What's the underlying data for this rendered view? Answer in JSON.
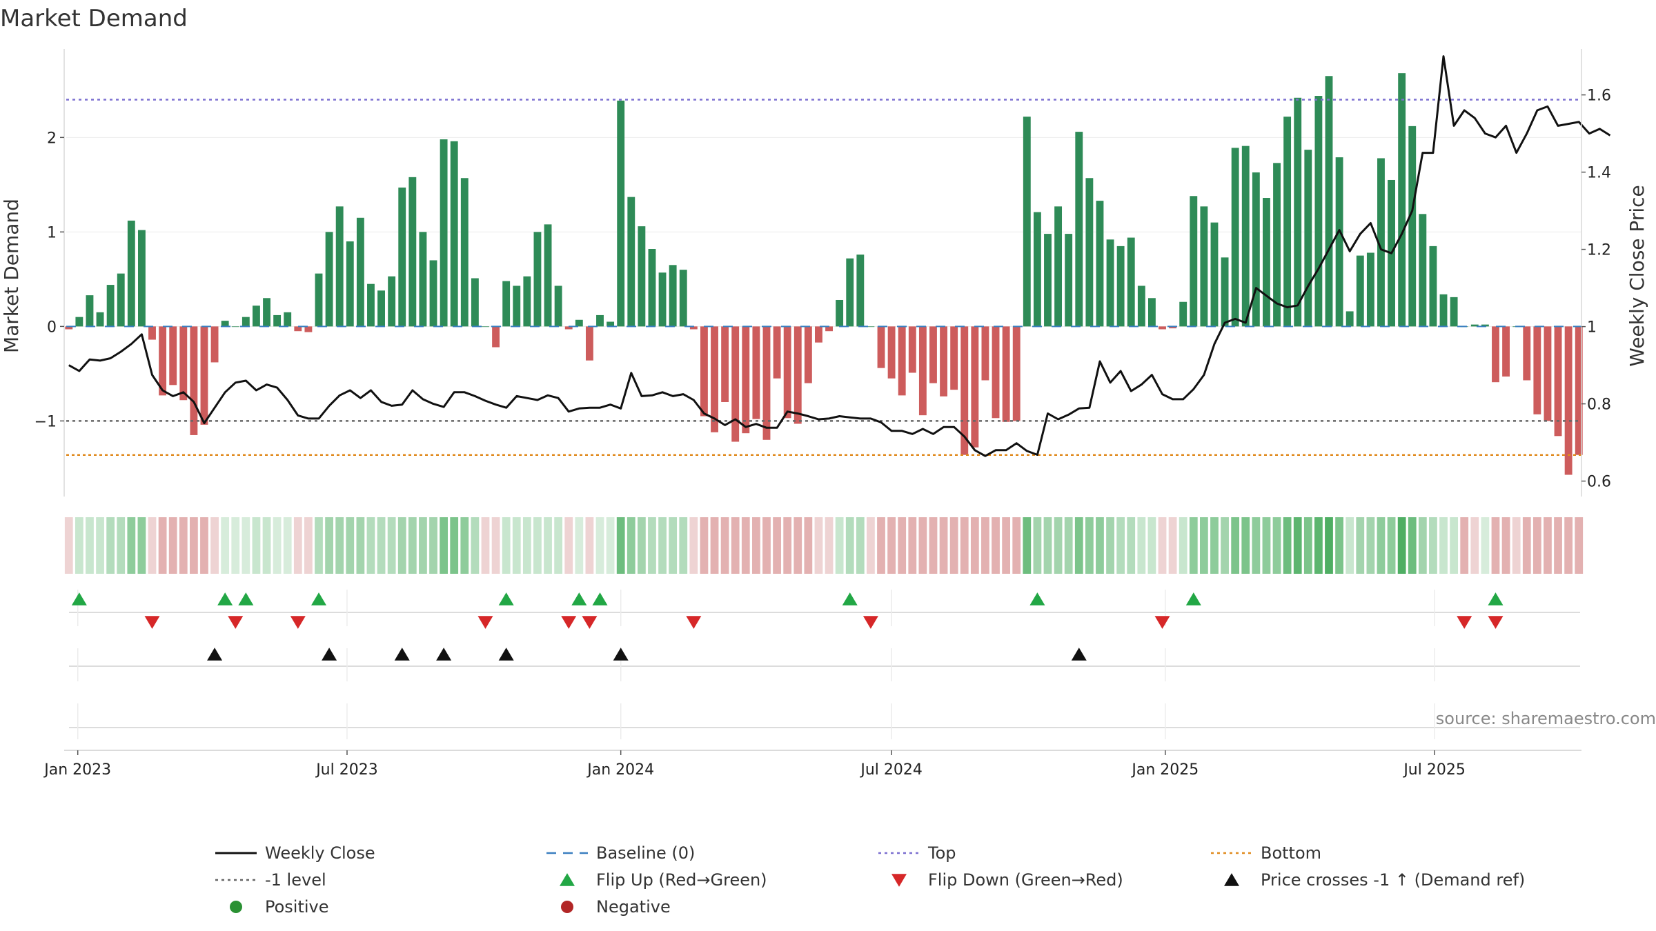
{
  "chart_data": {
    "type": "bar",
    "title": "Market Demand",
    "ylabel_left": "Market Demand",
    "ylabel_right": "Weekly Close Price",
    "source": "source: sharemaestro.com",
    "x_start": "2022-12-26",
    "x_step_days": 7,
    "x_ticks": [
      {
        "date": "2023-01-01",
        "label": "Jan 2023"
      },
      {
        "date": "2023-07-01",
        "label": "Jul 2023"
      },
      {
        "date": "2024-01-01",
        "label": "Jan 2024"
      },
      {
        "date": "2024-07-01",
        "label": "Jul 2024"
      },
      {
        "date": "2025-01-01",
        "label": "Jan 2025"
      },
      {
        "date": "2025-07-01",
        "label": "Jul 2025"
      }
    ],
    "left_axis": {
      "ylim": [
        -1.8,
        2.9
      ],
      "ticks": [
        {
          "v": 2,
          "label": "2"
        },
        {
          "v": 1,
          "label": "1"
        },
        {
          "v": 0,
          "label": "0"
        },
        {
          "v": -1,
          "label": "−1"
        }
      ]
    },
    "right_axis": {
      "ylim": [
        0.56,
        1.71
      ],
      "ticks": [
        {
          "v": 1.6,
          "label": "1.6"
        },
        {
          "v": 1.4,
          "label": "1.4"
        },
        {
          "v": 1.2,
          "label": "1.2"
        },
        {
          "v": 1.0,
          "label": "1"
        },
        {
          "v": 0.8,
          "label": "0.8"
        },
        {
          "v": 0.6,
          "label": "0.6"
        }
      ]
    },
    "levels": {
      "top": 2.4,
      "baseline": 0,
      "minus_one": -1,
      "bottom": -1.36
    },
    "demand": [
      -0.03,
      0.1,
      0.33,
      0.15,
      0.44,
      0.56,
      1.12,
      1.02,
      -0.14,
      -0.73,
      -0.62,
      -0.78,
      -1.15,
      -1.04,
      -0.38,
      0.06,
      0,
      0.1,
      0.22,
      0.3,
      0.12,
      0.15,
      -0.05,
      -0.06,
      0.56,
      1.0,
      1.27,
      0.9,
      1.15,
      0.45,
      0.38,
      0.53,
      1.47,
      1.58,
      1.0,
      0.7,
      1.98,
      1.96,
      1.57,
      0.51,
      0,
      -0.22,
      0.48,
      0.43,
      0.53,
      1.0,
      1.08,
      0.43,
      -0.03,
      0.07,
      -0.36,
      0.12,
      0.05,
      2.39,
      1.37,
      1.06,
      0.82,
      0.57,
      0.65,
      0.6,
      -0.03,
      -0.95,
      -1.12,
      -0.8,
      -1.22,
      -1.13,
      -0.98,
      -1.2,
      -0.55,
      -0.97,
      -1.03,
      -0.6,
      -0.17,
      -0.05,
      0.28,
      0.72,
      0.76,
      0,
      -0.44,
      -0.55,
      -0.73,
      -0.49,
      -0.94,
      -0.6,
      -0.74,
      -0.67,
      -1.36,
      -1.28,
      -0.57,
      -0.97,
      -1.01,
      -1.0,
      2.22,
      1.21,
      0.98,
      1.27,
      0.98,
      2.06,
      1.57,
      1.33,
      0.92,
      0.85,
      0.94,
      0.43,
      0.3,
      -0.03,
      -0.02,
      0.26,
      1.38,
      1.27,
      1.1,
      0.73,
      1.89,
      1.91,
      1.63,
      1.36,
      1.73,
      2.22,
      2.42,
      1.87,
      2.44,
      2.65,
      1.79,
      0.16,
      0.75,
      0.78,
      1.78,
      1.55,
      2.68,
      2.12,
      1.19,
      0.85,
      0.34,
      0.31,
      0,
      0.02,
      0.02,
      -0.59,
      -0.53,
      0,
      -0.57,
      -0.93,
      -1.0,
      -1.16,
      -1.57,
      -1.36
    ],
    "close": [
      0.9,
      0.885,
      0.915,
      0.912,
      0.918,
      0.935,
      0.955,
      0.98,
      0.875,
      0.835,
      0.82,
      0.83,
      0.805,
      0.75,
      0.79,
      0.83,
      0.855,
      0.86,
      0.835,
      0.85,
      0.842,
      0.81,
      0.77,
      0.762,
      0.762,
      0.795,
      0.822,
      0.835,
      0.815,
      0.835,
      0.805,
      0.795,
      0.798,
      0.835,
      0.812,
      0.8,
      0.792,
      0.83,
      0.83,
      0.82,
      0.808,
      0.798,
      0.79,
      0.82,
      0.815,
      0.81,
      0.822,
      0.815,
      0.78,
      0.788,
      0.79,
      0.79,
      0.798,
      0.788,
      0.88,
      0.82,
      0.822,
      0.83,
      0.82,
      0.825,
      0.81,
      0.775,
      0.762,
      0.745,
      0.76,
      0.74,
      0.748,
      0.738,
      0.738,
      0.78,
      0.775,
      0.768,
      0.76,
      0.762,
      0.768,
      0.765,
      0.762,
      0.762,
      0.752,
      0.73,
      0.73,
      0.722,
      0.735,
      0.722,
      0.74,
      0.74,
      0.715,
      0.68,
      0.665,
      0.68,
      0.68,
      0.698,
      0.678,
      0.668,
      0.775,
      0.76,
      0.772,
      0.788,
      0.79,
      0.91,
      0.855,
      0.885,
      0.833,
      0.85,
      0.875,
      0.825,
      0.812,
      0.812,
      0.838,
      0.875,
      0.955,
      1.01,
      1.02,
      1.01,
      1.1,
      1.08,
      1.06,
      1.05,
      1.055,
      1.105,
      1.15,
      1.2,
      1.25,
      1.195,
      1.24,
      1.268,
      1.2,
      1.19,
      1.24,
      1.3,
      1.45,
      1.45,
      1.7,
      1.52,
      1.56,
      1.54,
      1.5,
      1.49,
      1.52,
      1.45,
      1.5,
      1.56,
      1.57,
      1.52,
      1.525,
      1.53,
      1.5,
      1.512,
      1.495
    ],
    "heat_colors": [
      "#eed3d3",
      "#c8e6ce",
      "#c8e6ce",
      "#c8e6ce",
      "#b3dcbc",
      "#b3dcbc",
      "#8ecc9b",
      "#8ecc9b",
      "#eed3d3",
      "#e3b1b1",
      "#e3b1b1",
      "#e3b1b1",
      "#e3b1b1",
      "#e3b1b1",
      "#eed3d3",
      "#d7ecdb",
      "#d7ecdb",
      "#d7ecdb",
      "#c8e6ce",
      "#c8e6ce",
      "#d7ecdb",
      "#d7ecdb",
      "#eed3d3",
      "#eed3d3",
      "#b3dcbc",
      "#a3d4ad",
      "#a3d4ad",
      "#a3d4ad",
      "#a3d4ad",
      "#b3dcbc",
      "#b3dcbc",
      "#b3dcbc",
      "#a3d4ad",
      "#a3d4ad",
      "#a3d4ad",
      "#a3d4ad",
      "#7cc48b",
      "#7cc48b",
      "#8ecc9b",
      "#b3dcbc",
      "#eed3d3",
      "#eed3d3",
      "#c8e6ce",
      "#c8e6ce",
      "#c8e6ce",
      "#c8e6ce",
      "#c8e6ce",
      "#c8e6ce",
      "#eed3d3",
      "#d7ecdb",
      "#eed3d3",
      "#d7ecdb",
      "#d7ecdb",
      "#6dbd7e",
      "#8ecc9b",
      "#a3d4ad",
      "#b3dcbc",
      "#b3dcbc",
      "#b3dcbc",
      "#b3dcbc",
      "#eed3d3",
      "#e3b1b1",
      "#e3b1b1",
      "#e3b1b1",
      "#e3b1b1",
      "#e3b1b1",
      "#e3b1b1",
      "#e3b1b1",
      "#e3b1b1",
      "#e3b1b1",
      "#e3b1b1",
      "#e3b1b1",
      "#eed3d3",
      "#eed3d3",
      "#c8e6ce",
      "#b3dcbc",
      "#b3dcbc",
      "#eed3d3",
      "#e3b1b1",
      "#e3b1b1",
      "#e3b1b1",
      "#e3b1b1",
      "#e3b1b1",
      "#e3b1b1",
      "#e3b1b1",
      "#e3b1b1",
      "#e3b1b1",
      "#e3b1b1",
      "#e3b1b1",
      "#e3b1b1",
      "#e3b1b1",
      "#e3b1b1",
      "#6dbd7e",
      "#a3d4ad",
      "#a3d4ad",
      "#a3d4ad",
      "#a3d4ad",
      "#7cc48b",
      "#8ecc9b",
      "#8ecc9b",
      "#a3d4ad",
      "#b3dcbc",
      "#b3dcbc",
      "#c8e6ce",
      "#c8e6ce",
      "#eed3d3",
      "#eed3d3",
      "#c8e6ce",
      "#8ecc9b",
      "#8ecc9b",
      "#8ecc9b",
      "#a3d4ad",
      "#7cc48b",
      "#7cc48b",
      "#8ecc9b",
      "#8ecc9b",
      "#8ecc9b",
      "#6dbd7e",
      "#5cb56f",
      "#7cc48b",
      "#5cb56f",
      "#4fae63",
      "#7cc48b",
      "#c8e6ce",
      "#a3d4ad",
      "#a3d4ad",
      "#8ecc9b",
      "#8ecc9b",
      "#4fae63",
      "#6dbd7e",
      "#a3d4ad",
      "#b3dcbc",
      "#c8e6ce",
      "#c8e6ce",
      "#e3b1b1",
      "#eed3d3",
      "#d7ecdb",
      "#e3b1b1",
      "#e3b1b1",
      "#eed3d3",
      "#e3b1b1",
      "#e3b1b1",
      "#e3b1b1",
      "#e3b1b1",
      "#e3b1b1",
      "#e3b1b1"
    ],
    "flip_up_idx": [
      1,
      15,
      17,
      24,
      42,
      49,
      51,
      75,
      93,
      108,
      137
    ],
    "flip_down_idx": [
      8,
      16,
      22,
      40,
      48,
      50,
      60,
      77,
      105,
      134,
      137
    ],
    "price_cross_idx": [
      14,
      25,
      32,
      36,
      42,
      53,
      97
    ],
    "colors": {
      "positive": "#2e8b57",
      "negative": "#cd5c5c",
      "line": "#111111",
      "top": "#7b6fd0",
      "bottom": "#e08a1e",
      "baseline": "#3a7fc0",
      "minus_one": "#666666",
      "flip_up": "#22a745",
      "flip_down": "#d62728",
      "cross": "#111111",
      "positive_dot": "#2a9133",
      "negative_dot": "#b22626"
    },
    "legend": [
      {
        "label": "Weekly Close",
        "kind": "line-solid",
        "color": "#111111"
      },
      {
        "label": "Baseline (0)",
        "kind": "line-dash",
        "color": "#3a7fc0"
      },
      {
        "label": "Top",
        "kind": "line-dot",
        "color": "#7b6fd0"
      },
      {
        "label": "Bottom",
        "kind": "line-dot",
        "color": "#e08a1e"
      },
      {
        "label": "-1 level",
        "kind": "line-dot",
        "color": "#666666"
      },
      {
        "label": "Flip Up (Red→Green)",
        "kind": "tri-up",
        "color": "#22a745"
      },
      {
        "label": "Flip Down (Green→Red)",
        "kind": "tri-down",
        "color": "#d62728"
      },
      {
        "label": "Price crosses -1 ↑ (Demand ref)",
        "kind": "tri-up",
        "color": "#111111"
      },
      {
        "label": "Positive",
        "kind": "dot",
        "color": "#2a9133"
      },
      {
        "label": "Negative",
        "kind": "dot",
        "color": "#b22626"
      }
    ]
  }
}
